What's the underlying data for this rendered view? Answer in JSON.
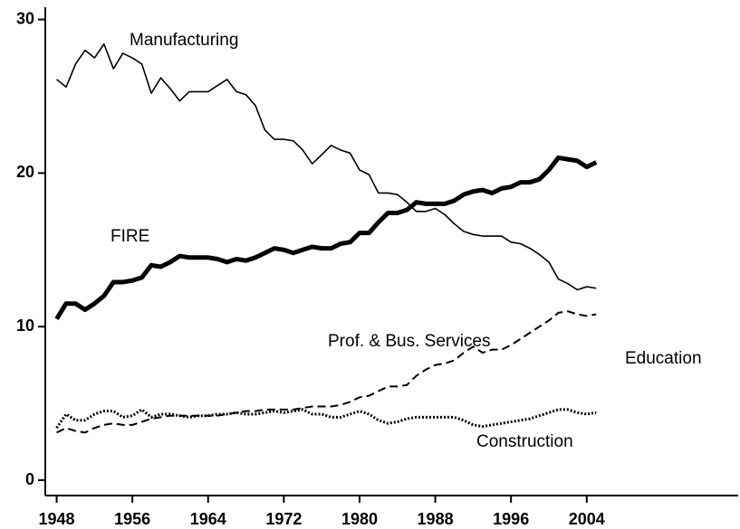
{
  "chart_data": {
    "type": "line",
    "x": [
      1948,
      1949,
      1950,
      1951,
      1952,
      1953,
      1954,
      1955,
      1956,
      1957,
      1958,
      1959,
      1960,
      1961,
      1962,
      1963,
      1964,
      1965,
      1966,
      1967,
      1968,
      1969,
      1970,
      1971,
      1972,
      1973,
      1974,
      1975,
      1976,
      1977,
      1978,
      1979,
      1980,
      1981,
      1982,
      1983,
      1984,
      1985,
      1986,
      1987,
      1988,
      1989,
      1990,
      1991,
      1992,
      1993,
      1994,
      1995,
      1996,
      1997,
      1998,
      1999,
      2000,
      2001,
      2002,
      2003,
      2004,
      2005
    ],
    "series": [
      {
        "name": "Manufacturing",
        "color": "#000000",
        "width": 1.6,
        "dash": "none",
        "values": [
          26.1,
          25.6,
          27.1,
          28.0,
          27.5,
          28.4,
          26.8,
          27.8,
          27.5,
          27.1,
          25.2,
          26.2,
          25.5,
          24.7,
          25.3,
          25.3,
          25.3,
          25.7,
          26.1,
          25.3,
          25.1,
          24.4,
          22.8,
          22.2,
          22.2,
          22.1,
          21.5,
          20.6,
          21.2,
          21.8,
          21.5,
          21.3,
          20.2,
          19.9,
          18.7,
          18.7,
          18.6,
          18.1,
          17.5,
          17.5,
          17.7,
          17.3,
          16.7,
          16.2,
          16.0,
          15.9,
          15.9,
          15.9,
          15.5,
          15.4,
          15.1,
          14.7,
          14.2,
          13.1,
          12.8,
          12.4,
          12.6,
          12.5
        ]
      },
      {
        "name": "FIRE",
        "color": "#000000",
        "width": 5,
        "dash": "none",
        "values": [
          10.5,
          11.5,
          11.5,
          11.1,
          11.5,
          12.0,
          12.9,
          12.9,
          13.0,
          13.2,
          14.0,
          13.9,
          14.2,
          14.6,
          14.5,
          14.5,
          14.5,
          14.4,
          14.2,
          14.4,
          14.3,
          14.5,
          14.8,
          15.1,
          15.0,
          14.8,
          15.0,
          15.2,
          15.1,
          15.1,
          15.4,
          15.5,
          16.1,
          16.1,
          16.8,
          17.4,
          17.4,
          17.6,
          18.1,
          18.0,
          18.0,
          18.0,
          18.2,
          18.6,
          18.8,
          18.9,
          18.7,
          19.0,
          19.1,
          19.4,
          19.4,
          19.6,
          20.2,
          21.0,
          20.9,
          20.8,
          20.4,
          20.7
        ]
      },
      {
        "name": "Prof. & Bus. Services",
        "color": "#000000",
        "width": 2,
        "dash": "9 5",
        "values": [
          3.1,
          3.4,
          3.2,
          3.1,
          3.4,
          3.6,
          3.7,
          3.6,
          3.6,
          3.8,
          4.0,
          4.1,
          4.2,
          4.2,
          4.2,
          4.2,
          4.2,
          4.2,
          4.3,
          4.4,
          4.5,
          4.5,
          4.6,
          4.6,
          4.6,
          4.6,
          4.7,
          4.8,
          4.8,
          4.8,
          4.9,
          5.1,
          5.4,
          5.5,
          5.8,
          6.1,
          6.1,
          6.2,
          6.8,
          7.2,
          7.5,
          7.6,
          7.8,
          8.3,
          8.7,
          8.3,
          8.5,
          8.5,
          8.8,
          9.2,
          9.6,
          10.0,
          10.4,
          10.9,
          11.0,
          10.8,
          10.7,
          10.8
        ]
      },
      {
        "name": "Construction",
        "color": "#000000",
        "width": 3,
        "dash": "2 2",
        "values": [
          3.4,
          4.3,
          3.9,
          3.9,
          4.3,
          4.5,
          4.5,
          4.1,
          4.2,
          4.6,
          4.1,
          4.3,
          4.3,
          4.2,
          4.1,
          4.2,
          4.2,
          4.3,
          4.3,
          4.4,
          4.3,
          4.3,
          4.4,
          4.5,
          4.4,
          4.5,
          4.6,
          4.3,
          4.3,
          4.1,
          4.1,
          4.3,
          4.5,
          4.3,
          3.9,
          3.7,
          3.8,
          4.0,
          4.1,
          4.1,
          4.1,
          4.1,
          4.1,
          3.9,
          3.6,
          3.5,
          3.6,
          3.7,
          3.8,
          3.9,
          4.0,
          4.2,
          4.4,
          4.6,
          4.6,
          4.4,
          4.3,
          4.4
        ]
      }
    ],
    "annotations": [
      "Education"
    ],
    "xlim": [
      1946.8,
      2020
    ],
    "xticks": [
      1948,
      1956,
      1964,
      1972,
      1980,
      1988,
      1996,
      2004
    ],
    "ylim": [
      -1,
      30.8
    ],
    "yticks": [
      0,
      10,
      20,
      30
    ],
    "grid": false
  }
}
